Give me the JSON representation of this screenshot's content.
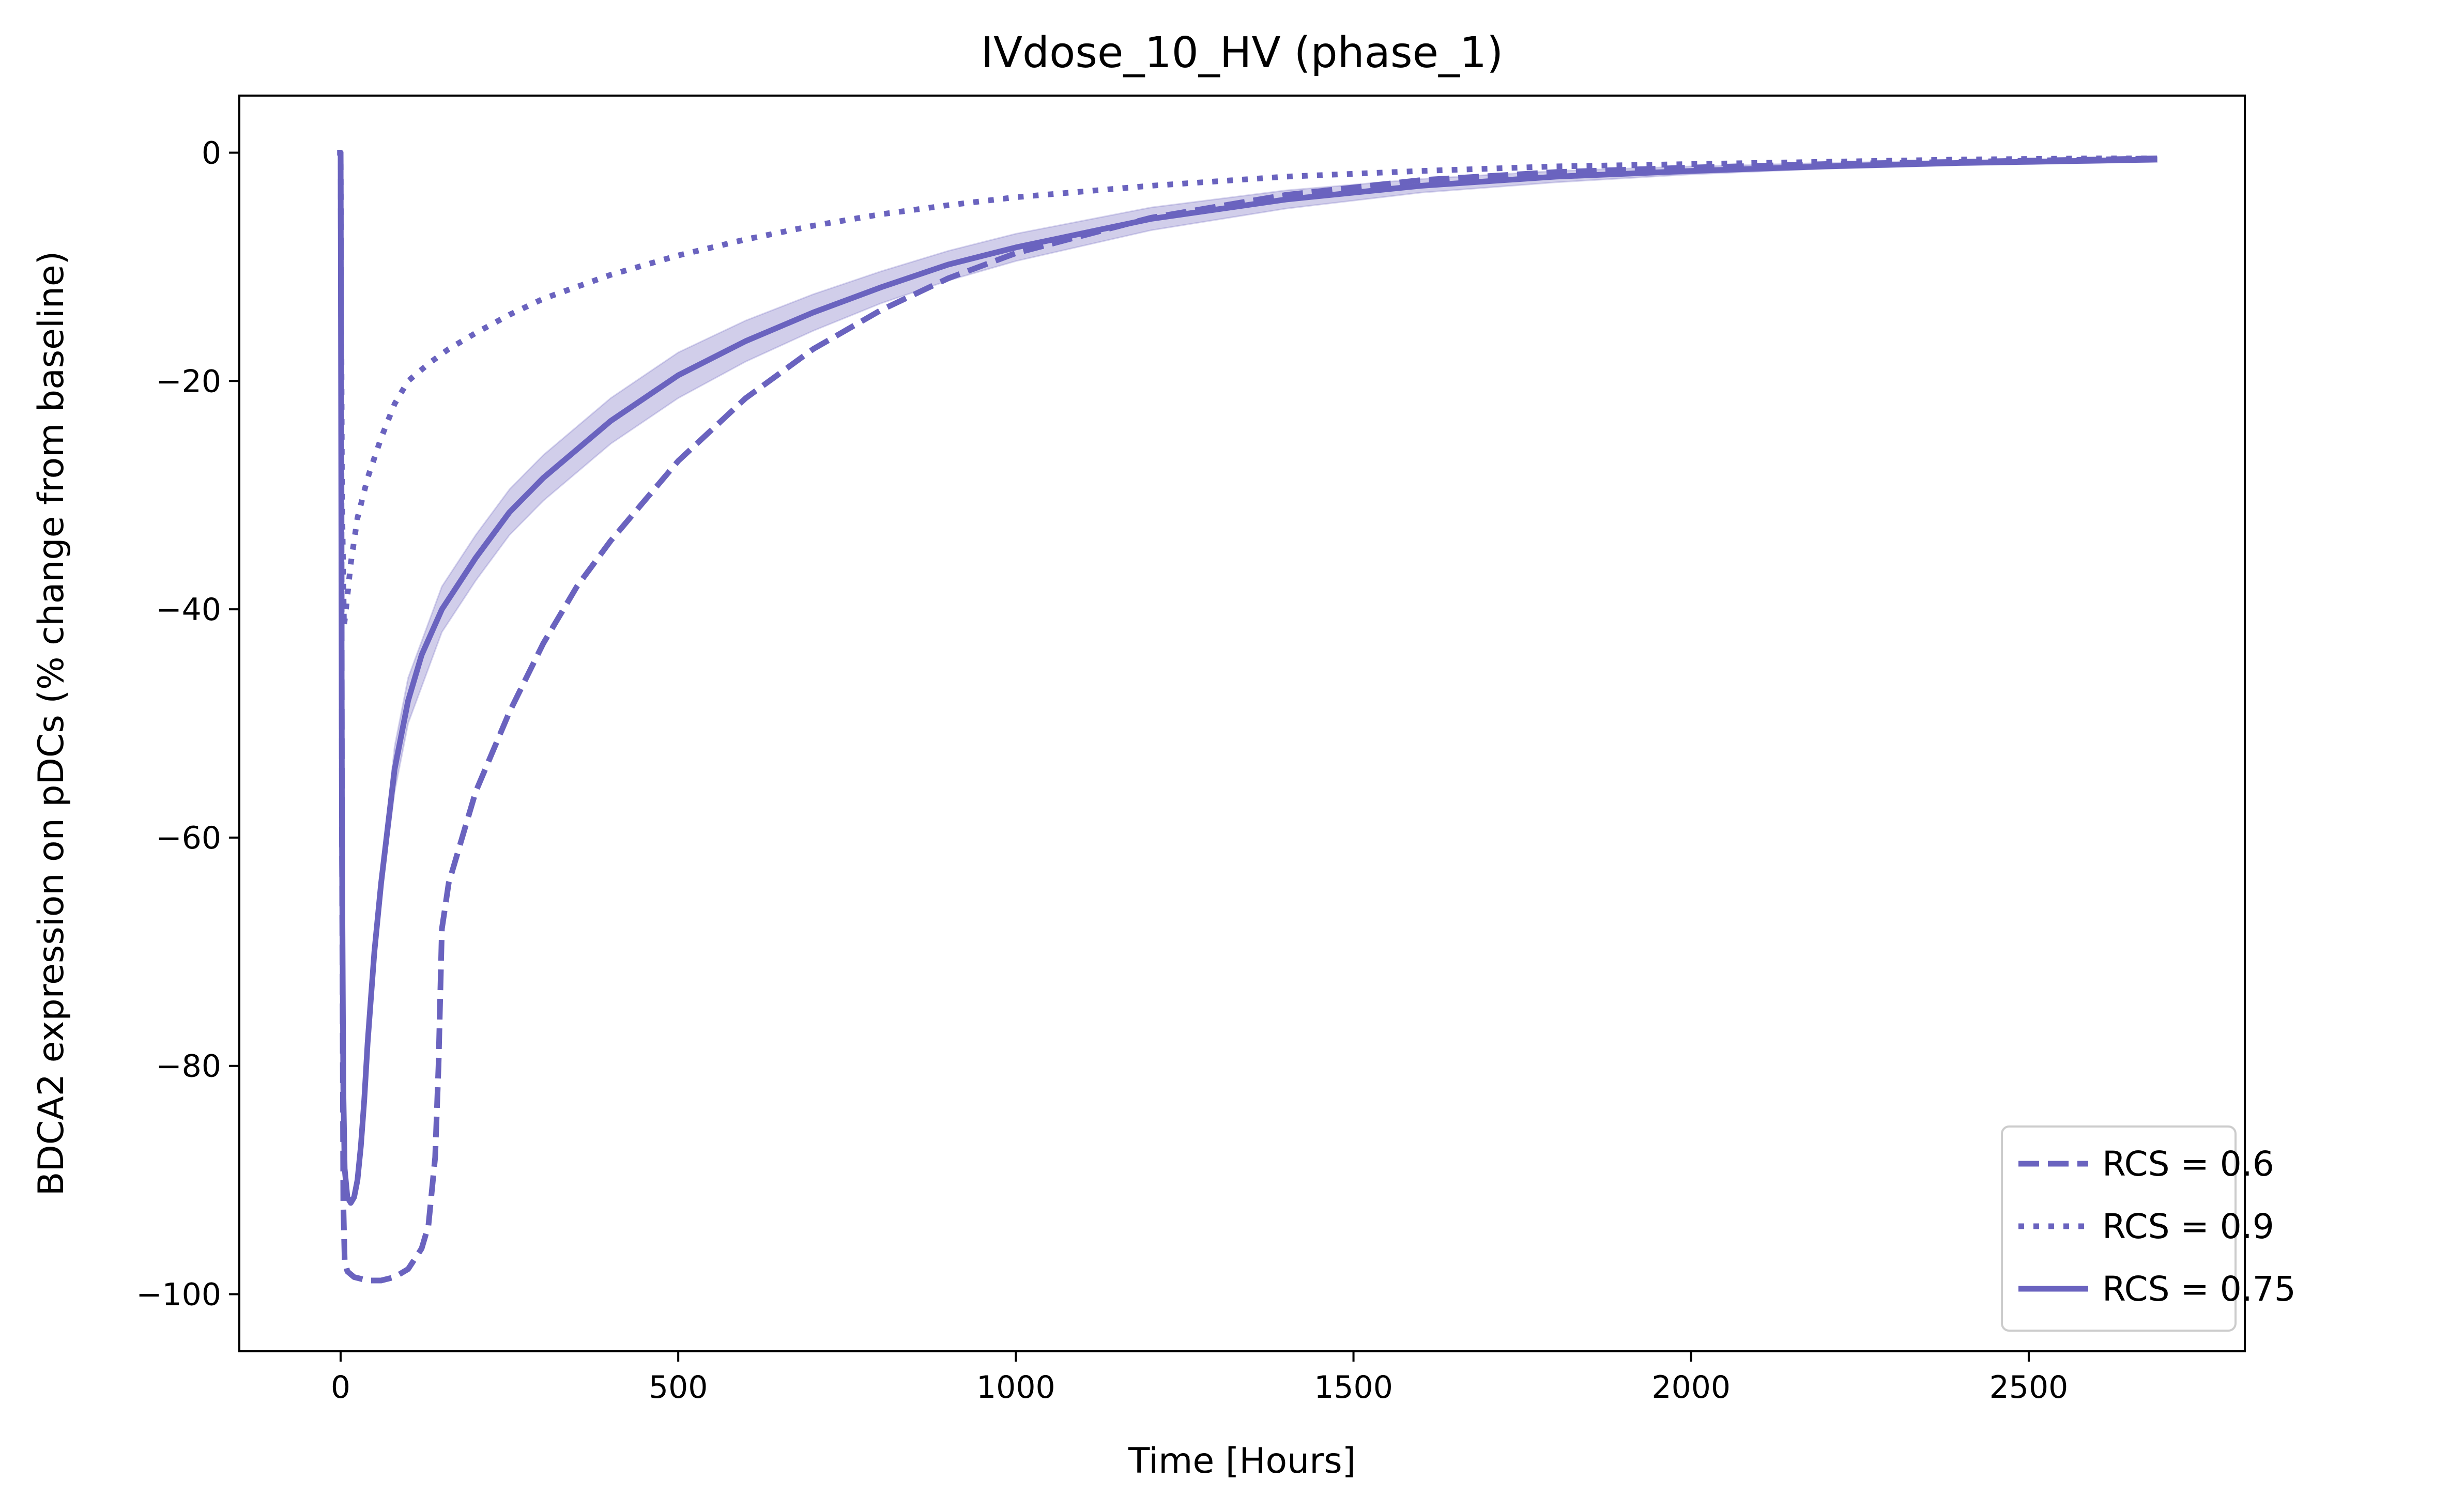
{
  "chart_data": {
    "type": "line",
    "title": "IVdose_10_HV (phase_1)",
    "xlabel": "Time [Hours]",
    "ylabel": "BDCA2 expression on pDCs (% change from baseline)",
    "xlim": [
      -150,
      2820
    ],
    "ylim": [
      -105,
      5
    ],
    "xticks": [
      0,
      500,
      1000,
      1500,
      2000,
      2500
    ],
    "xtick_labels": [
      "0",
      "500",
      "1000",
      "1500",
      "2000",
      "2500"
    ],
    "yticks": [
      0,
      -20,
      -40,
      -60,
      -80,
      -100
    ],
    "ytick_labels": [
      "0",
      "−20",
      "−40",
      "−60",
      "−80",
      "−100"
    ],
    "grid": false,
    "legend_position": "lower-right",
    "color": "#6a63bf",
    "band_color": "#c9c6e6",
    "series": [
      {
        "name": "RCS = 0.6",
        "style": "dashed",
        "x": [
          -5,
          0,
          1,
          2,
          4,
          6,
          10,
          20,
          40,
          60,
          80,
          100,
          120,
          130,
          140,
          145,
          150,
          155,
          160,
          180,
          200,
          250,
          300,
          350,
          400,
          450,
          500,
          600,
          700,
          800,
          900,
          1000,
          1200,
          1400,
          1600,
          1800,
          2000,
          2200,
          2400,
          2600,
          2690
        ],
        "y": [
          0,
          0,
          -20,
          -60,
          -92,
          -97,
          -98,
          -98.5,
          -98.8,
          -98.8,
          -98.5,
          -97.8,
          -96,
          -94,
          -88,
          -80,
          -68,
          -66,
          -64,
          -60,
          -56,
          -49,
          -43,
          -38,
          -34,
          -30.5,
          -27,
          -21.5,
          -17.2,
          -13.8,
          -11,
          -8.8,
          -5.7,
          -3.7,
          -2.4,
          -1.7,
          -1.3,
          -1.0,
          -0.8,
          -0.6,
          -0.5
        ]
      },
      {
        "name": "RCS = 0.9",
        "style": "dotted",
        "x": [
          -5,
          0,
          2,
          5,
          8,
          15,
          25,
          40,
          60,
          80,
          100,
          130,
          160,
          200,
          250,
          300,
          400,
          500,
          600,
          700,
          800,
          900,
          1000,
          1200,
          1400,
          1600,
          1800,
          2000,
          2200,
          2400,
          2600,
          2690
        ],
        "y": [
          0,
          0,
          -30,
          -41.5,
          -40,
          -36,
          -32,
          -28.5,
          -25,
          -22,
          -20,
          -18.5,
          -17.2,
          -15.8,
          -14.2,
          -12.8,
          -10.7,
          -9,
          -7.6,
          -6.4,
          -5.4,
          -4.6,
          -3.9,
          -2.9,
          -2.1,
          -1.6,
          -1.2,
          -1.0,
          -0.8,
          -0.6,
          -0.5,
          -0.5
        ]
      },
      {
        "name": "RCS = 0.75",
        "style": "solid",
        "x": [
          -5,
          0,
          1,
          2,
          4,
          6,
          10,
          15,
          20,
          25,
          30,
          35,
          40,
          45,
          50,
          60,
          70,
          80,
          90,
          100,
          120,
          150,
          200,
          250,
          300,
          400,
          500,
          600,
          700,
          800,
          900,
          1000,
          1200,
          1400,
          1600,
          1800,
          2000,
          2200,
          2400,
          2600,
          2690
        ],
        "y": [
          0,
          0,
          -30,
          -60,
          -82,
          -89,
          -91.5,
          -92,
          -91.5,
          -90,
          -87,
          -83,
          -78,
          -74,
          -70,
          -64,
          -59,
          -54,
          -51,
          -48,
          -44,
          -40,
          -35.5,
          -31.5,
          -28.5,
          -23.5,
          -19.5,
          -16.5,
          -14,
          -11.8,
          -9.8,
          -8.3,
          -5.8,
          -4.1,
          -2.9,
          -2.1,
          -1.6,
          -1.2,
          -0.9,
          -0.7,
          -0.6
        ]
      }
    ],
    "band": {
      "name": "RCS = 0.75 range",
      "x": [
        60,
        80,
        100,
        150,
        200,
        250,
        300,
        400,
        500,
        600,
        700,
        800,
        900,
        1000,
        1200,
        1400,
        1600,
        1800,
        2000,
        2200,
        2400,
        2600,
        2690
      ],
      "lower": [
        -65,
        -56,
        -50,
        -42,
        -37.5,
        -33.5,
        -30.5,
        -25.5,
        -21.5,
        -18.3,
        -15.6,
        -13.2,
        -11.2,
        -9.5,
        -6.8,
        -4.9,
        -3.5,
        -2.6,
        -1.9,
        -1.4,
        -1.1,
        -0.9,
        -0.8
      ],
      "upper": [
        -63,
        -52,
        -46,
        -38,
        -33.5,
        -29.5,
        -26.5,
        -21.5,
        -17.5,
        -14.7,
        -12.4,
        -10.4,
        -8.6,
        -7.1,
        -4.8,
        -3.3,
        -2.3,
        -1.6,
        -1.2,
        -0.9,
        -0.7,
        -0.5,
        -0.4
      ]
    }
  }
}
